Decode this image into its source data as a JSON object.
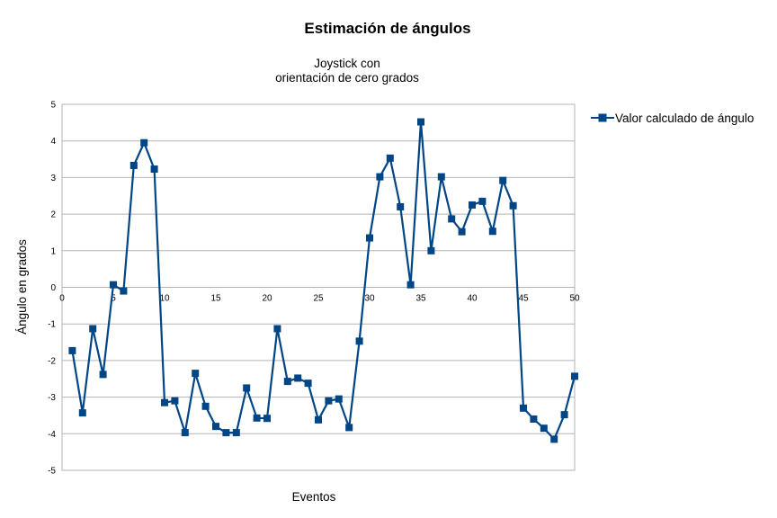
{
  "chart_data": {
    "type": "line",
    "title": "Estimación de ángulos",
    "subtitle_lines": [
      "Joystick con",
      "orientación de cero grados"
    ],
    "xlabel": "Eventos",
    "ylabel": "Ángulo en grados",
    "xlim": [
      0,
      50
    ],
    "ylim": [
      -5,
      5
    ],
    "x_ticks": [
      0,
      5,
      10,
      15,
      20,
      25,
      30,
      35,
      40,
      45,
      50
    ],
    "y_ticks": [
      5,
      4,
      3,
      2,
      1,
      0,
      -1,
      -2,
      -3,
      -4,
      -5
    ],
    "grid": true,
    "legend_position": "right",
    "series": [
      {
        "name": "Valor calculado de ángulo",
        "color": "#004586",
        "marker": "square",
        "x": [
          1,
          2,
          3,
          4,
          5,
          6,
          7,
          8,
          9,
          10,
          11,
          12,
          13,
          14,
          15,
          16,
          17,
          18,
          19,
          20,
          21,
          22,
          23,
          24,
          25,
          26,
          27,
          28,
          29,
          30,
          31,
          32,
          33,
          34,
          35,
          36,
          37,
          38,
          39,
          40,
          41,
          42,
          43,
          44,
          45,
          46,
          47,
          48,
          49,
          50
        ],
        "y": [
          -1.73,
          -3.43,
          -1.13,
          -2.38,
          0.07,
          -0.1,
          3.33,
          3.95,
          3.23,
          -3.15,
          -3.1,
          -3.97,
          -2.35,
          -3.25,
          -3.8,
          -3.97,
          -3.97,
          -2.75,
          -3.57,
          -3.58,
          -1.13,
          -2.57,
          -2.48,
          -2.62,
          -3.62,
          -3.1,
          -3.05,
          -3.83,
          -1.47,
          1.35,
          3.02,
          3.53,
          2.2,
          0.07,
          4.52,
          1.0,
          3.02,
          1.87,
          1.52,
          2.25,
          2.35,
          1.53,
          2.92,
          2.23,
          -3.3,
          -3.6,
          -3.85,
          -4.15,
          -3.48,
          -2.43
        ]
      }
    ]
  }
}
